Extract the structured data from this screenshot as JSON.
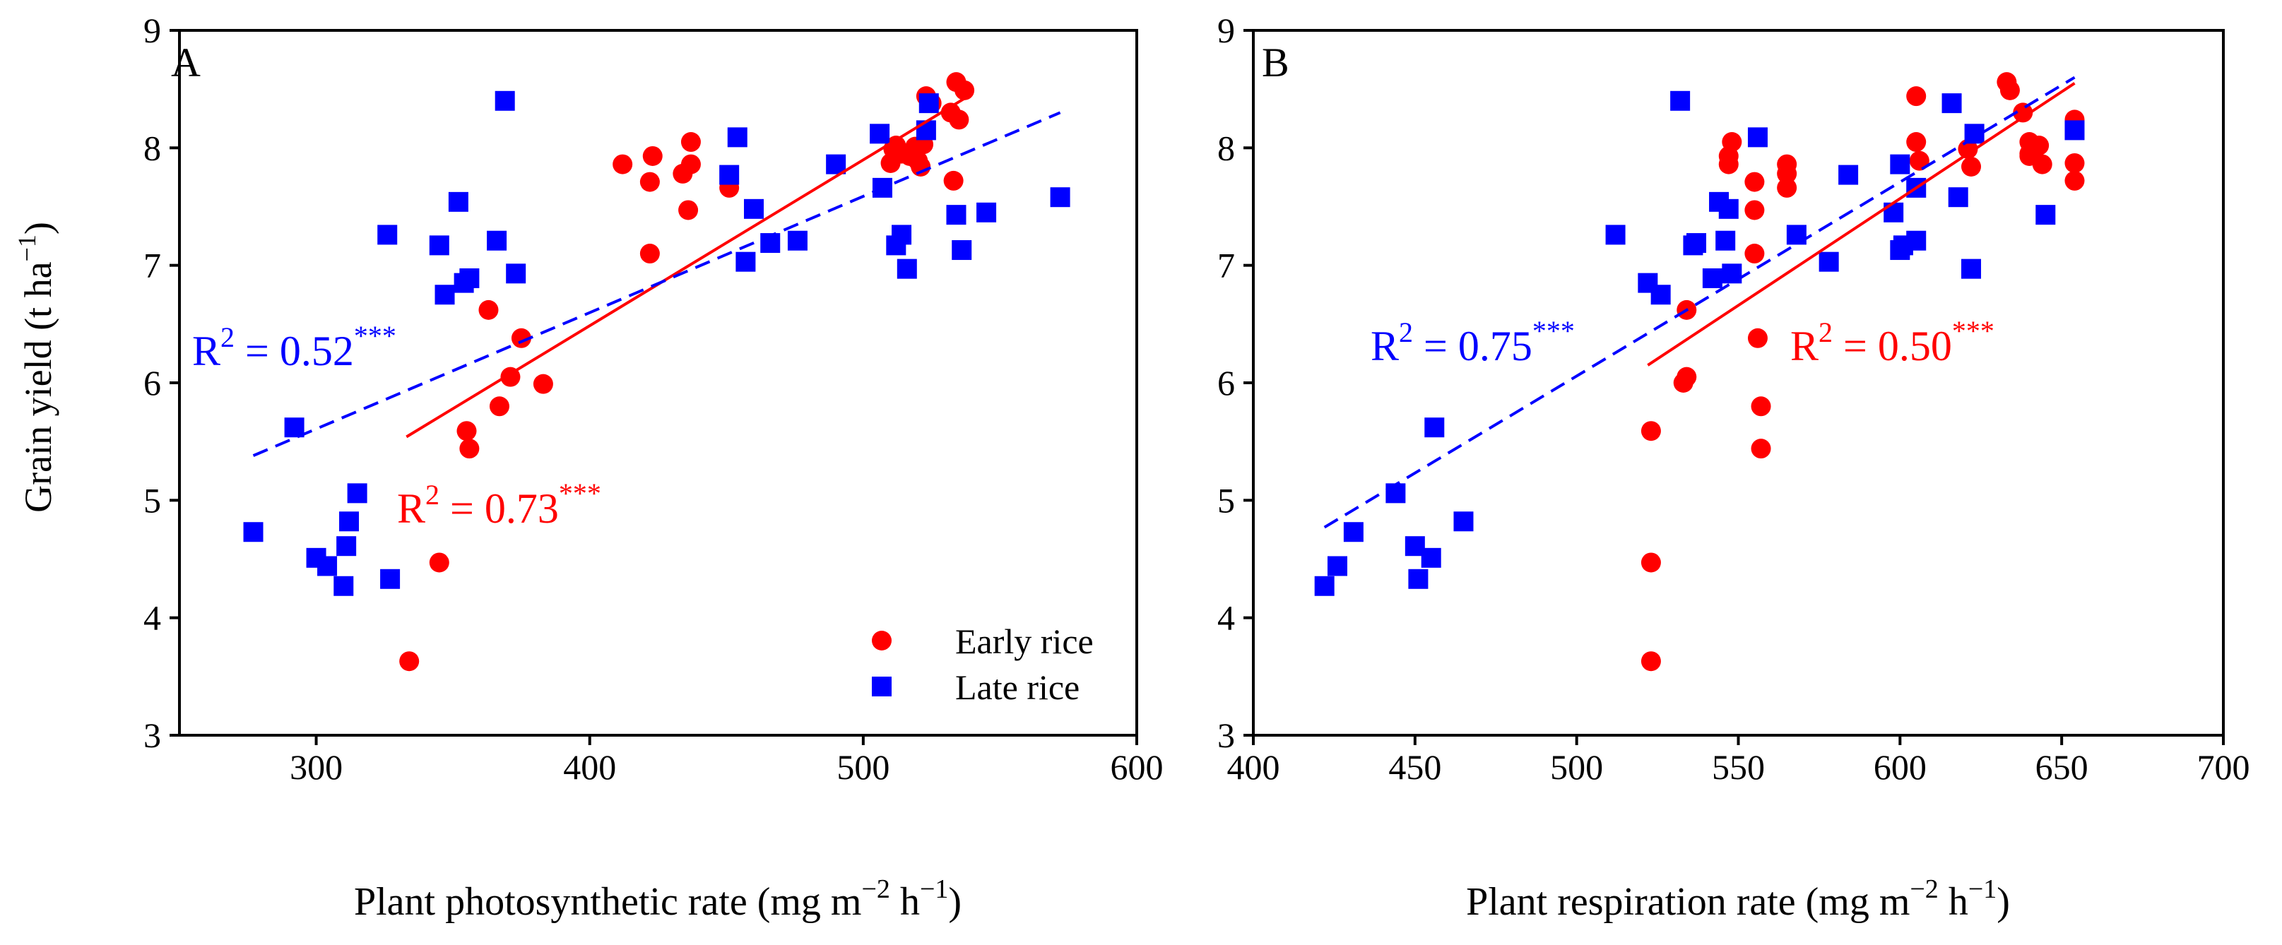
{
  "colors": {
    "early": "#ff0000",
    "late": "#0000ff",
    "axis": "#000000"
  },
  "ylabel_main": "Grain yield (t ha",
  "ylabel_sup": "−1",
  "ylabel_close": ")",
  "legend": {
    "early": "Early rice",
    "late": "Late rice"
  },
  "chart_data": [
    {
      "type": "scatter",
      "panel_label": "A",
      "xlabel_parts": {
        "base": "Plant photosynthetic rate (mg m",
        "sup1": "−2",
        "mid": " h",
        "sup2": "−1",
        "end": ")"
      },
      "xlim": [
        250,
        600
      ],
      "ylim": [
        3,
        9
      ],
      "xticks": [
        300,
        400,
        500,
        600
      ],
      "yticks": [
        3,
        4,
        5,
        6,
        7,
        8,
        9
      ],
      "series": [
        {
          "name": "Early rice",
          "marker": "circle",
          "points": [
            [
              334,
              3.63
            ],
            [
              345,
              4.47
            ],
            [
              355,
              5.59
            ],
            [
              356,
              5.44
            ],
            [
              363,
              6.62
            ],
            [
              367,
              5.8
            ],
            [
              371,
              6.05
            ],
            [
              375,
              6.38
            ],
            [
              383,
              5.99
            ],
            [
              412,
              7.86
            ],
            [
              422,
              7.1
            ],
            [
              422,
              7.71
            ],
            [
              423,
              7.93
            ],
            [
              434,
              7.78
            ],
            [
              436,
              7.47
            ],
            [
              437,
              7.86
            ],
            [
              437,
              8.05
            ],
            [
              451,
              7.66
            ],
            [
              510,
              7.87
            ],
            [
              511,
              7.99
            ],
            [
              512,
              8.02
            ],
            [
              514,
              7.95
            ],
            [
              517,
              7.93
            ],
            [
              519,
              8.01
            ],
            [
              520,
              7.89
            ],
            [
              521,
              7.84
            ],
            [
              522,
              8.03
            ],
            [
              523,
              8.44
            ],
            [
              525,
              8.38
            ],
            [
              532,
              8.3
            ],
            [
              533,
              7.72
            ],
            [
              534,
              8.56
            ],
            [
              535,
              8.24
            ],
            [
              537,
              8.49
            ]
          ]
        },
        {
          "name": "Late rice",
          "marker": "square",
          "points": [
            [
              277,
              4.73
            ],
            [
              292,
              5.62
            ],
            [
              300,
              4.51
            ],
            [
              304,
              4.44
            ],
            [
              310,
              4.27
            ],
            [
              311,
              4.61
            ],
            [
              312,
              4.82
            ],
            [
              315,
              5.06
            ],
            [
              326,
              7.26
            ],
            [
              327,
              4.33
            ],
            [
              345,
              7.17
            ],
            [
              347,
              6.75
            ],
            [
              352,
              7.54
            ],
            [
              354,
              6.85
            ],
            [
              356,
              6.89
            ],
            [
              366,
              7.21
            ],
            [
              369,
              8.4
            ],
            [
              373,
              6.93
            ],
            [
              451,
              7.77
            ],
            [
              454,
              8.09
            ],
            [
              457,
              7.03
            ],
            [
              460,
              7.48
            ],
            [
              466,
              7.19
            ],
            [
              476,
              7.21
            ],
            [
              490,
              7.86
            ],
            [
              506,
              8.12
            ],
            [
              507,
              7.66
            ],
            [
              512,
              7.17
            ],
            [
              514,
              7.26
            ],
            [
              516,
              6.97
            ],
            [
              523,
              8.15
            ],
            [
              524,
              8.38
            ],
            [
              534,
              7.43
            ],
            [
              536,
              7.13
            ],
            [
              545,
              7.45
            ],
            [
              572,
              7.58
            ]
          ]
        }
      ],
      "fits": [
        {
          "name": "Early rice",
          "style": "solid",
          "x": [
            333,
            537
          ],
          "y": [
            5.54,
            8.42
          ]
        },
        {
          "name": "Late rice",
          "style": "dashed",
          "x": [
            277,
            572
          ],
          "y": [
            5.38,
            8.3
          ]
        }
      ],
      "annotations": [
        {
          "series": "Late rice",
          "base": "R",
          "sq": "2",
          "value": " = 0.52",
          "stars": "***"
        },
        {
          "series": "Early rice",
          "base": "R",
          "sq": "2",
          "value": " = 0.73",
          "stars": "***"
        }
      ]
    },
    {
      "type": "scatter",
      "panel_label": "B",
      "xlabel_parts": {
        "base": "Plant respiration rate (mg m",
        "sup1": "−2",
        "mid": " h",
        "sup2": "−1",
        "end": ")"
      },
      "xlim": [
        400,
        700
      ],
      "ylim": [
        3,
        9
      ],
      "xticks": [
        400,
        450,
        500,
        550,
        600,
        650,
        700
      ],
      "yticks": [
        3,
        4,
        5,
        6,
        7,
        8,
        9
      ],
      "series": [
        {
          "name": "Early rice",
          "marker": "circle",
          "points": [
            [
              523,
              3.63
            ],
            [
              523,
              4.47
            ],
            [
              523,
              5.59
            ],
            [
              533,
              6.0
            ],
            [
              534,
              6.05
            ],
            [
              534,
              6.62
            ],
            [
              547,
              7.86
            ],
            [
              547,
              7.93
            ],
            [
              548,
              8.05
            ],
            [
              555,
              7.1
            ],
            [
              555,
              7.47
            ],
            [
              555,
              7.71
            ],
            [
              556,
              6.38
            ],
            [
              557,
              5.8
            ],
            [
              557,
              5.44
            ],
            [
              565,
              7.66
            ],
            [
              565,
              7.78
            ],
            [
              565,
              7.86
            ],
            [
              605,
              8.44
            ],
            [
              605,
              8.05
            ],
            [
              606,
              7.89
            ],
            [
              621,
              7.99
            ],
            [
              622,
              7.84
            ],
            [
              633,
              8.56
            ],
            [
              634,
              8.49
            ],
            [
              638,
              8.3
            ],
            [
              640,
              8.05
            ],
            [
              640,
              7.93
            ],
            [
              640,
              7.95
            ],
            [
              643,
              8.02
            ],
            [
              644,
              7.86
            ],
            [
              654,
              8.24
            ],
            [
              654,
              7.87
            ],
            [
              654,
              7.72
            ]
          ]
        },
        {
          "name": "Late rice",
          "marker": "square",
          "points": [
            [
              422,
              4.27
            ],
            [
              426,
              4.44
            ],
            [
              431,
              4.73
            ],
            [
              444,
              5.06
            ],
            [
              450,
              4.61
            ],
            [
              451,
              4.33
            ],
            [
              455,
              4.51
            ],
            [
              456,
              5.62
            ],
            [
              465,
              4.82
            ],
            [
              512,
              7.26
            ],
            [
              522,
              6.85
            ],
            [
              526,
              6.75
            ],
            [
              532,
              8.4
            ],
            [
              536,
              7.17
            ],
            [
              537,
              7.19
            ],
            [
              542,
              6.89
            ],
            [
              544,
              7.54
            ],
            [
              546,
              7.21
            ],
            [
              547,
              7.48
            ],
            [
              548,
              6.93
            ],
            [
              556,
              8.09
            ],
            [
              568,
              7.26
            ],
            [
              578,
              7.03
            ],
            [
              584,
              7.77
            ],
            [
              598,
              7.45
            ],
            [
              600,
              7.86
            ],
            [
              600,
              7.13
            ],
            [
              601,
              7.17
            ],
            [
              605,
              7.21
            ],
            [
              605,
              7.66
            ],
            [
              616,
              8.38
            ],
            [
              618,
              7.58
            ],
            [
              622,
              6.97
            ],
            [
              623,
              8.12
            ],
            [
              645,
              7.43
            ],
            [
              654,
              8.15
            ]
          ]
        }
      ],
      "fits": [
        {
          "name": "Early rice",
          "style": "solid",
          "x": [
            522,
            654
          ],
          "y": [
            6.15,
            8.55
          ]
        },
        {
          "name": "Late rice",
          "style": "dashed",
          "x": [
            422,
            654
          ],
          "y": [
            4.77,
            8.6
          ]
        }
      ],
      "annotations": [
        {
          "series": "Late rice",
          "base": "R",
          "sq": "2",
          "value": " = 0.75",
          "stars": "***"
        },
        {
          "series": "Early rice",
          "base": "R",
          "sq": "2",
          "value": " = 0.50",
          "stars": "***"
        }
      ]
    }
  ]
}
